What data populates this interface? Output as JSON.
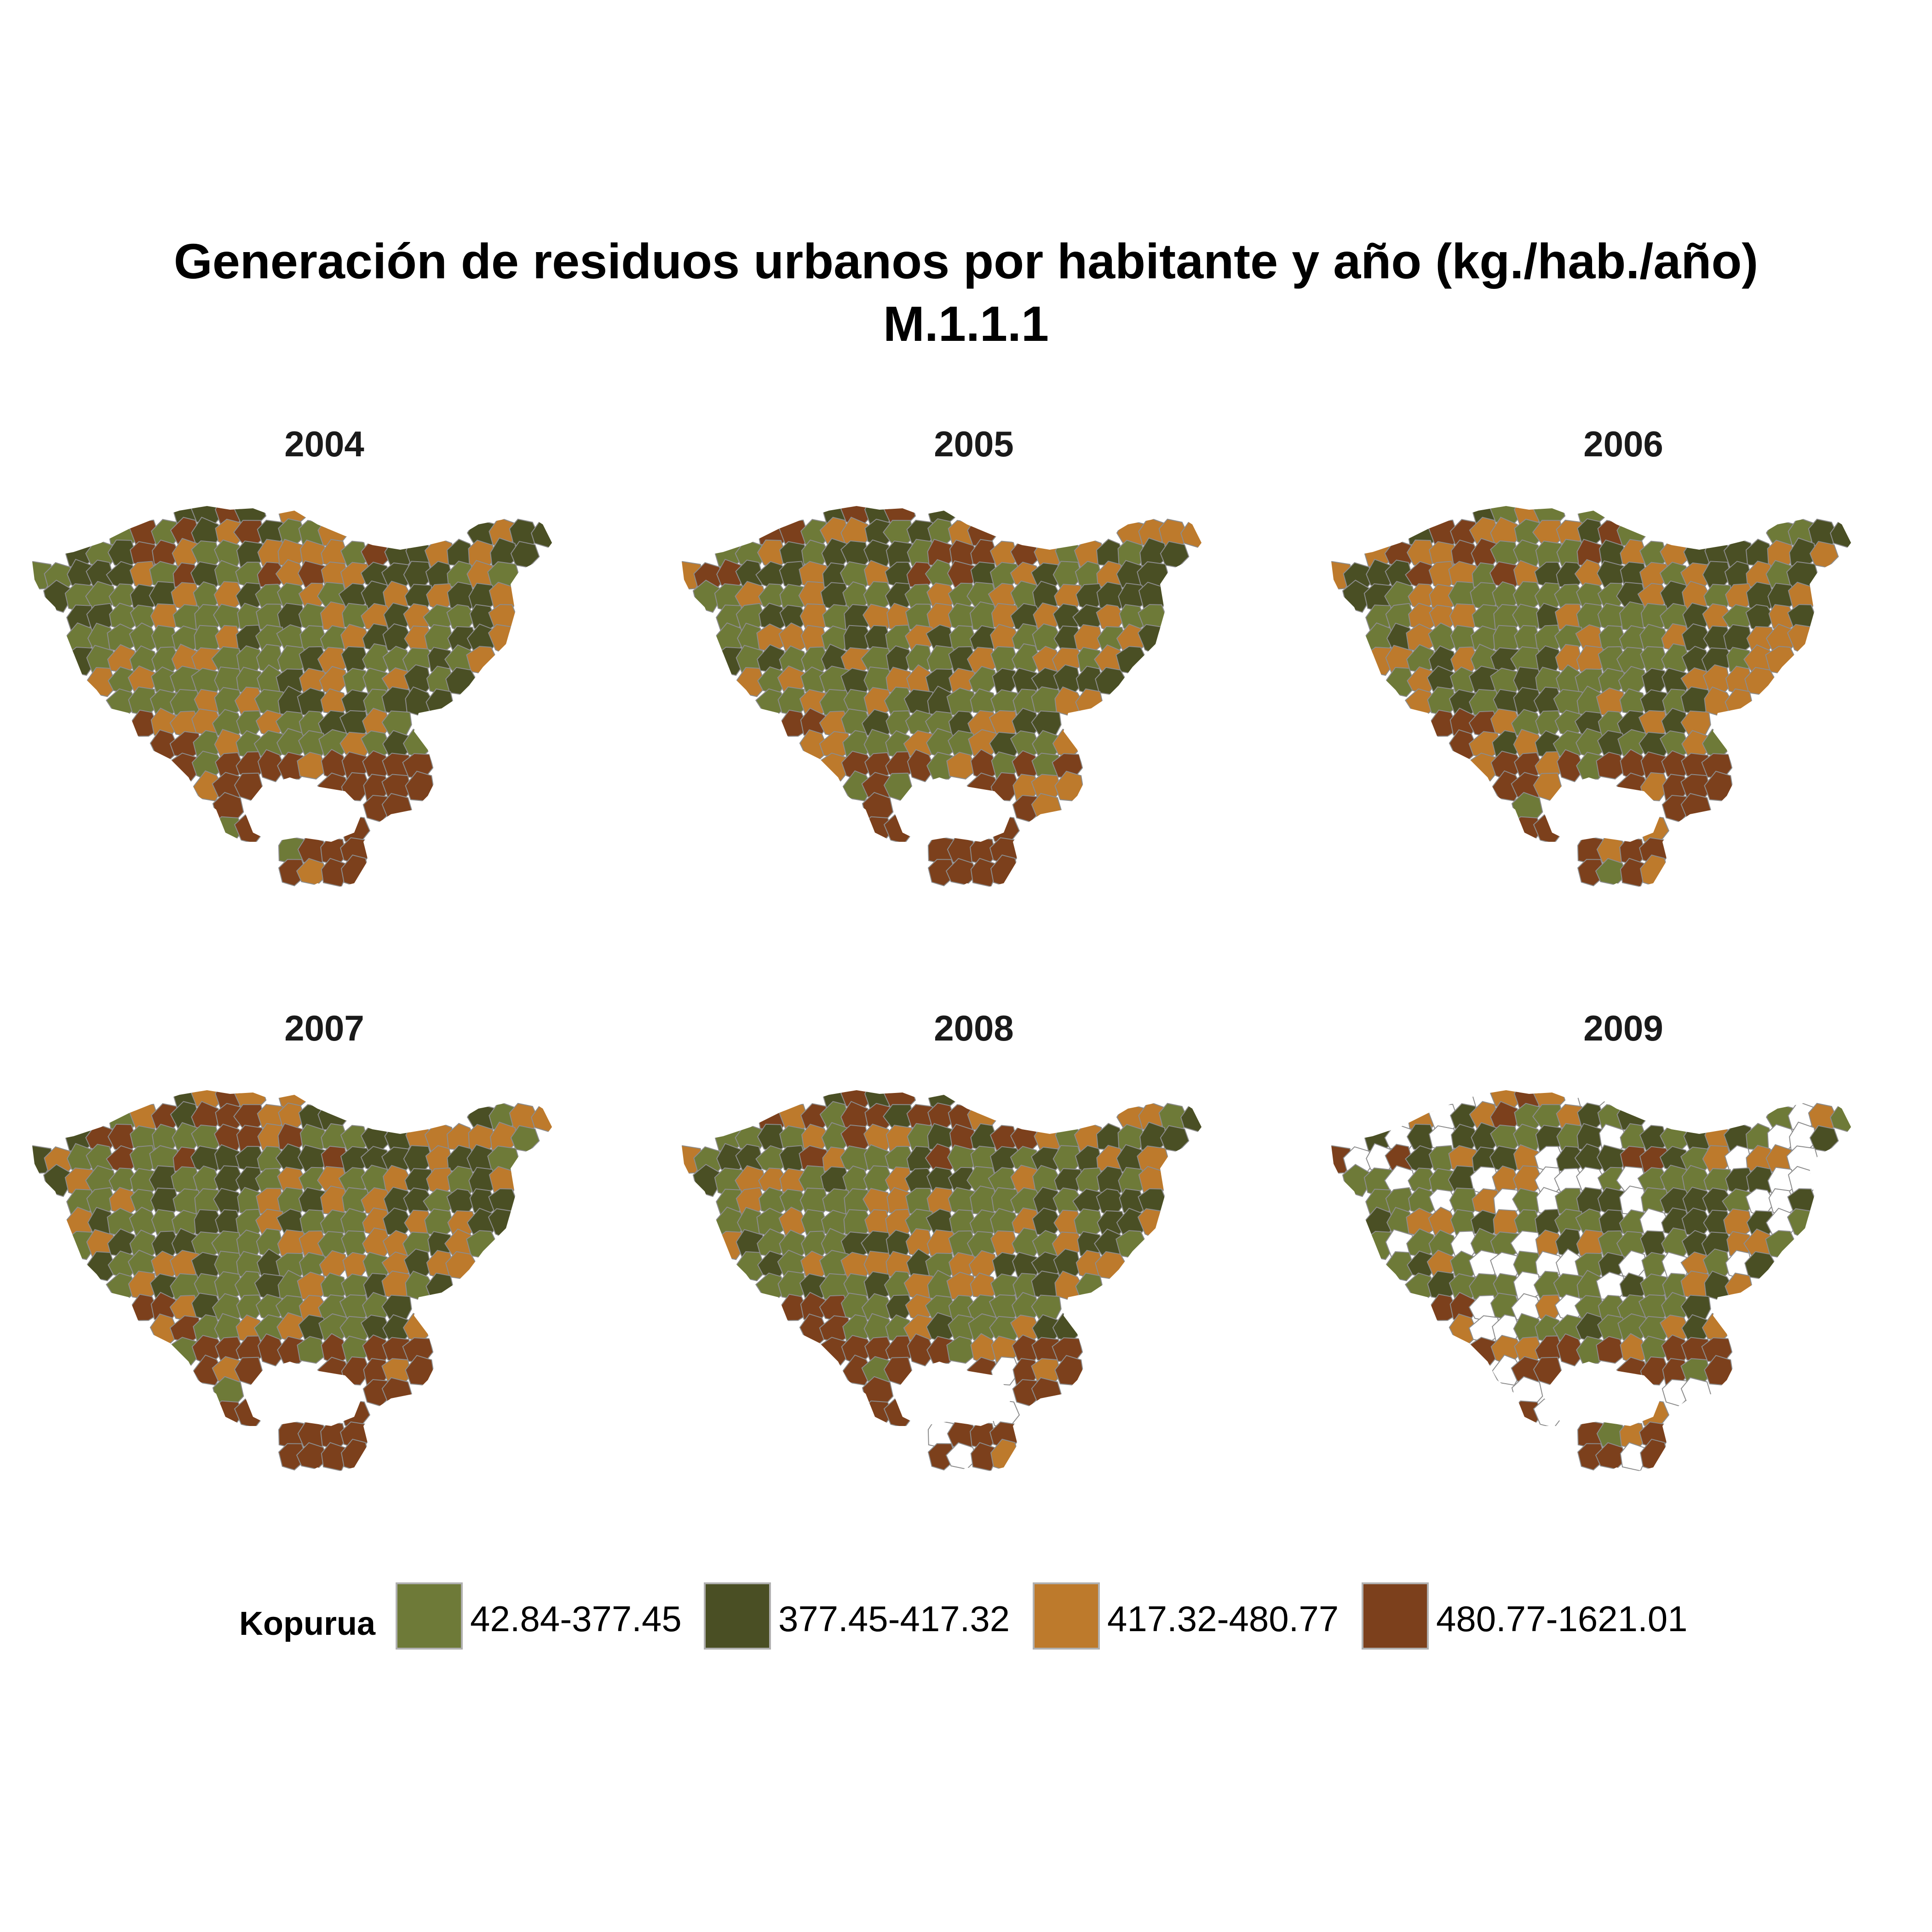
{
  "title_line1": "Generación de residuos urbanos por habitante y año (kg./hab./año)",
  "title_line2": "M.1.1.1",
  "panels": [
    {
      "year": "2004"
    },
    {
      "year": "2005"
    },
    {
      "year": "2006"
    },
    {
      "year": "2007"
    },
    {
      "year": "2008"
    },
    {
      "year": "2009"
    }
  ],
  "legend": {
    "title": "Kopurua",
    "items": [
      {
        "label": "42.84-377.45",
        "color": "#6e7a38"
      },
      {
        "label": "377.45-417.32",
        "color": "#4a4f24"
      },
      {
        "label": "417.32-480.77",
        "color": "#bd7a2c"
      },
      {
        "label": "480.77-1621.01",
        "color": "#7c401c"
      }
    ],
    "no_data_color": "#ffffff"
  },
  "map_style": {
    "border_color": "#8c8c8c",
    "background": "#ffffff"
  }
}
